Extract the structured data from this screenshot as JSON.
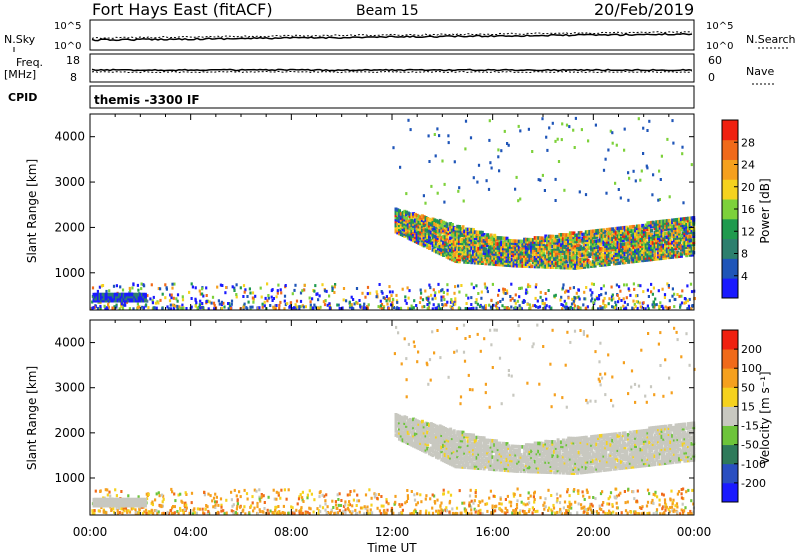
{
  "header": {
    "station": "Fort Hays East (fitACF)",
    "beam": "Beam 15",
    "date": "20/Feb/2019"
  },
  "top_panels": {
    "nsky": {
      "left_label": "N.Sky",
      "right_label": "N.Search",
      "left_ticks": [
        "10^5",
        "10^0"
      ],
      "right_ticks": [
        "10^5",
        "10^0"
      ]
    },
    "freq": {
      "left_label_line1": "Freq.",
      "left_label_line2": "[MHz]",
      "right_label": "Nave",
      "left_ticks": [
        "18",
        "8"
      ],
      "right_ticks": [
        "60",
        "0"
      ]
    },
    "cpid": {
      "left_label": "CPID",
      "text": "themis -3300 IF"
    }
  },
  "colors": {
    "power": [
      "#1a1aff",
      "#1f55b8",
      "#2d7f6e",
      "#1f9a4e",
      "#7dd13a",
      "#f5d21e",
      "#f5a01e",
      "#f06a1a",
      "#f02010"
    ],
    "velocity": [
      "#1a1aff",
      "#2a4fc0",
      "#2f7a5a",
      "#6dc43a",
      "#c8c8c0",
      "#f5d21e",
      "#f5a01e",
      "#f06a1a",
      "#f02010"
    ]
  },
  "chart_data": [
    {
      "type": "heatmap",
      "name": "power",
      "xlabel": "",
      "ylabel": "Slant Range [km]",
      "x_ticks": [
        "00:00",
        "04:00",
        "08:00",
        "12:00",
        "16:00",
        "20:00",
        "00:00"
      ],
      "y_ticks": [
        "1000",
        "2000",
        "3000",
        "4000"
      ],
      "xlim": [
        0,
        24
      ],
      "ylim": [
        180,
        4500
      ],
      "colorbar": {
        "label": "Power [dB]",
        "ticks": [
          "28",
          "24",
          "20",
          "16",
          "12",
          "8",
          "4"
        ],
        "range": [
          0,
          30
        ]
      },
      "bands": [
        {
          "x": [
            12.1,
            24.0
          ],
          "lower_km": [
            1900,
            1250,
            1150,
            1100,
            1250,
            1400
          ],
          "upper_km": [
            2400,
            2050,
            1700,
            1900,
            2050,
            2250
          ],
          "typical_db": 18
        },
        {
          "x": [
            0.0,
            2.2
          ],
          "lower_km": [
            350
          ],
          "upper_km": [
            550
          ],
          "typical_db": 8
        },
        {
          "x": [
            0.0,
            24.0
          ],
          "lower_km": [
            180
          ],
          "upper_km": [
            800
          ],
          "typical_db": 10
        }
      ]
    },
    {
      "type": "heatmap",
      "name": "velocity",
      "xlabel": "Time UT",
      "ylabel": "Slant Range [km]",
      "x_ticks": [
        "00:00",
        "04:00",
        "08:00",
        "12:00",
        "16:00",
        "20:00",
        "00:00"
      ],
      "y_ticks": [
        "1000",
        "2000",
        "3000",
        "4000"
      ],
      "xlim": [
        0,
        24
      ],
      "ylim": [
        180,
        4500
      ],
      "colorbar": {
        "label": "Velocity [m s⁻¹]",
        "ticks": [
          "200",
          "100",
          "50",
          "15",
          "-15",
          "-50",
          "-100",
          "-200"
        ],
        "range": [
          -250,
          250
        ]
      }
    }
  ]
}
